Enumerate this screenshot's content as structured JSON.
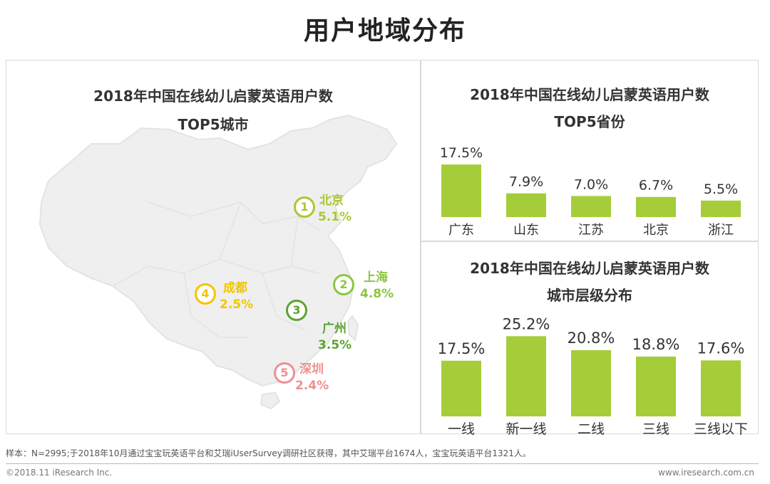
{
  "page": {
    "title": "用户地域分布",
    "footnote": "样本：N=2995;于2018年10月通过宝宝玩英语平台和艾瑞iUserSurvey调研社区获得，其中艾瑞平台1674人，宝宝玩英语平台1321人。",
    "copyright": "©2018.11 iResearch Inc.",
    "website": "www.iresearch.com.cn"
  },
  "map": {
    "title_line1": "2018年中国在线幼儿启蒙英语用户数",
    "title_line2": "TOP5城市",
    "cities": [
      {
        "rank": "1",
        "name": "北京",
        "value": "5.1%",
        "color": "#a8c832"
      },
      {
        "rank": "2",
        "name": "上海",
        "value": "4.8%",
        "color": "#8cc63f"
      },
      {
        "rank": "3",
        "name": "广州",
        "value": "3.5%",
        "color": "#5aa332"
      },
      {
        "rank": "4",
        "name": "成都",
        "value": "2.5%",
        "color": "#f2c500"
      },
      {
        "rank": "5",
        "name": "深圳",
        "value": "2.4%",
        "color": "#ee8f8f"
      }
    ]
  },
  "chart_data": [
    {
      "type": "bar",
      "title": "2018年中国在线幼儿启蒙英语用户数 TOP5省份",
      "title_line1": "2018年中国在线幼儿启蒙英语用户数",
      "title_line2": "TOP5省份",
      "categories": [
        "广东",
        "山东",
        "江苏",
        "北京",
        "浙江"
      ],
      "values": [
        17.5,
        7.9,
        7.0,
        6.7,
        5.5
      ],
      "labels": [
        "17.5%",
        "7.9%",
        "7.0%",
        "6.7%",
        "5.5%"
      ],
      "ylim": [
        0,
        18
      ],
      "bar_color": "#a5cd39",
      "grid": false
    },
    {
      "type": "bar",
      "title": "2018年中国在线幼儿启蒙英语用户数 城市层级分布",
      "title_line1": "2018年中国在线幼儿启蒙英语用户数",
      "title_line2": "城市层级分布",
      "categories": [
        "一线",
        "新一线",
        "二线",
        "三线",
        "三线以下"
      ],
      "values": [
        17.5,
        25.2,
        20.8,
        18.8,
        17.6
      ],
      "labels": [
        "17.5%",
        "25.2%",
        "20.8%",
        "18.8%",
        "17.6%"
      ],
      "ylim": [
        0,
        25.5
      ],
      "bar_color": "#a5cd39",
      "grid": false
    }
  ]
}
